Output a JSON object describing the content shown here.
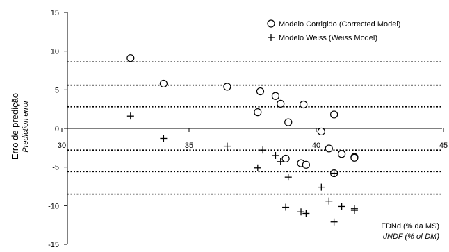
{
  "chart_data": {
    "type": "scatter",
    "title": "",
    "ylabel": "Erro de predição",
    "ylabel_en": "Prediction error",
    "xlabel": "FDNd (% da MS)",
    "xlabel_en": "dNDF (% of DM)",
    "xlim": [
      30,
      45
    ],
    "ylim": [
      -15,
      15
    ],
    "x_ticks": [
      30,
      35,
      40,
      45
    ],
    "y_ticks": [
      15,
      10,
      5,
      0,
      -5,
      -10,
      -15
    ],
    "grid": false,
    "legend_position": "top-right",
    "reference_lines_y": [
      8.6,
      5.6,
      2.8,
      -2.8,
      -5.6,
      -8.5
    ],
    "series": [
      {
        "name": "Modelo Corrigido (Corrected Model)",
        "marker": "circle",
        "points": [
          [
            32.7,
            9.1
          ],
          [
            34.0,
            5.8
          ],
          [
            36.5,
            5.4
          ],
          [
            37.8,
            4.8
          ],
          [
            37.7,
            2.1
          ],
          [
            38.4,
            4.2
          ],
          [
            38.6,
            3.2
          ],
          [
            38.9,
            0.8
          ],
          [
            39.5,
            3.1
          ],
          [
            40.7,
            1.8
          ],
          [
            40.2,
            -0.4
          ],
          [
            40.5,
            -2.6
          ],
          [
            41.0,
            -3.3
          ],
          [
            41.5,
            -3.7
          ],
          [
            41.5,
            -3.8
          ],
          [
            38.8,
            -3.9
          ],
          [
            39.4,
            -4.5
          ],
          [
            39.6,
            -4.7
          ],
          [
            40.7,
            -5.8
          ]
        ]
      },
      {
        "name": "Modelo Weiss (Weiss Model)",
        "marker": "plus",
        "points": [
          [
            32.7,
            1.6
          ],
          [
            34.0,
            -1.3
          ],
          [
            36.5,
            -2.3
          ],
          [
            37.9,
            -2.8
          ],
          [
            38.4,
            -3.5
          ],
          [
            38.6,
            -4.3
          ],
          [
            37.7,
            -5.1
          ],
          [
            38.9,
            -6.3
          ],
          [
            40.2,
            -7.6
          ],
          [
            40.5,
            -9.4
          ],
          [
            41.0,
            -10.1
          ],
          [
            41.5,
            -10.4
          ],
          [
            41.5,
            -10.6
          ],
          [
            38.8,
            -10.2
          ],
          [
            39.4,
            -10.8
          ],
          [
            39.6,
            -11.0
          ],
          [
            40.7,
            -12.1
          ],
          [
            40.7,
            -5.8
          ]
        ]
      }
    ]
  }
}
